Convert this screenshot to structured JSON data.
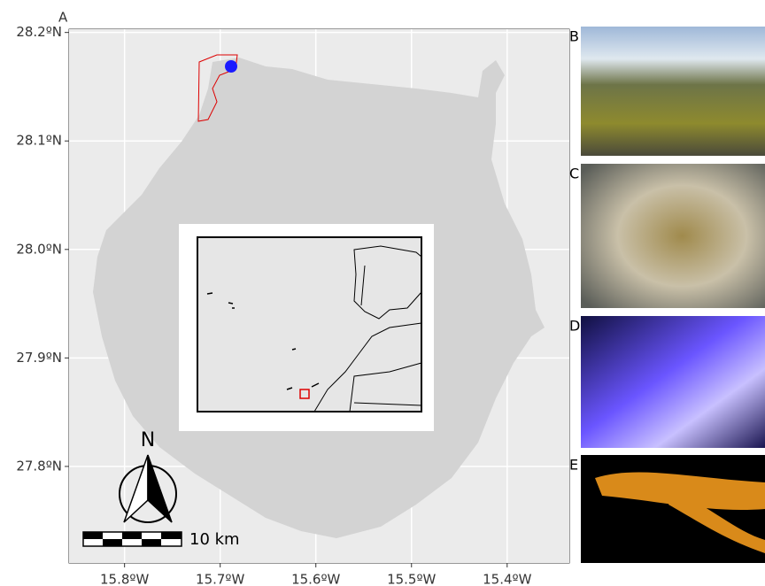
{
  "panel_label": "A",
  "map": {
    "xlim": [
      -15.858,
      -15.335
    ],
    "ylim": [
      27.711,
      28.203
    ],
    "xticks": [
      {
        "value": -15.8,
        "label": "15.8ºW"
      },
      {
        "value": -15.7,
        "label": "15.7ºW"
      },
      {
        "value": -15.6,
        "label": "15.6ºW"
      },
      {
        "value": -15.5,
        "label": "15.5ºW"
      },
      {
        "value": -15.4,
        "label": "15.4ºW"
      }
    ],
    "yticks": [
      {
        "value": 27.8,
        "label": "27.8ºN"
      },
      {
        "value": 27.9,
        "label": "27.9ºN"
      },
      {
        "value": 28.0,
        "label": "28.0ºN"
      },
      {
        "value": 28.1,
        "label": "28.1ºN"
      },
      {
        "value": 28.2,
        "label": "28.2ºN"
      }
    ],
    "north": "N",
    "scale_bar": "10 km"
  },
  "photos": [
    {
      "label": "B"
    },
    {
      "label": "C"
    },
    {
      "label": "D"
    },
    {
      "label": "E"
    }
  ]
}
